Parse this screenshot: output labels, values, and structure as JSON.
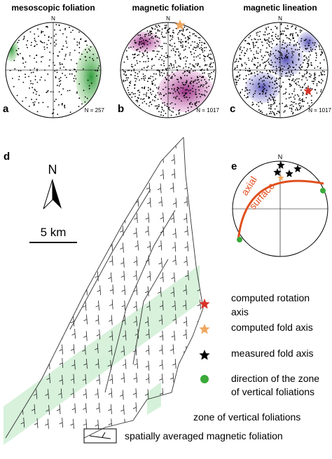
{
  "panels": [
    {
      "letter": "a",
      "title": "mesoscopic foliation",
      "north": "N",
      "count": "N = 257"
    },
    {
      "letter": "b",
      "title": "magnetic foliation",
      "north": "N",
      "count": "N = 1017"
    },
    {
      "letter": "c",
      "title": "magnetic lineation",
      "north": "N",
      "count": "N = 1017"
    }
  ],
  "map": {
    "letter": "d",
    "north": "N",
    "scale": "5 km"
  },
  "stereonet_e": {
    "letter": "e",
    "north": "N",
    "label": [
      "axial",
      "surface"
    ]
  },
  "legend": [
    {
      "label": [
        "computed rotation",
        "axis"
      ]
    },
    {
      "label": [
        "computed fold axis"
      ]
    },
    {
      "label": [
        "measured fold axis"
      ]
    },
    {
      "label": [
        "direction of the zone",
        "of vertical foliations"
      ]
    },
    {
      "label": [
        "zone of vertical foliations"
      ]
    },
    {
      "label": [
        "spatially averaged magnetic foliation"
      ]
    }
  ]
}
